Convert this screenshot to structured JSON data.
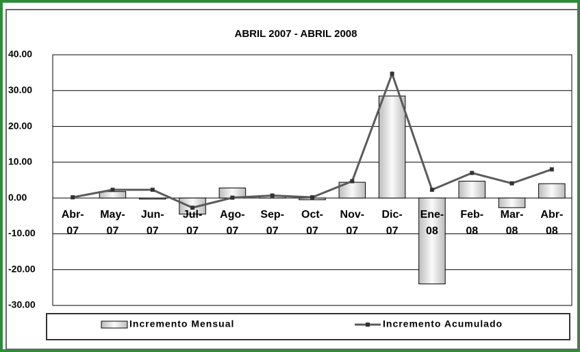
{
  "chart_data": {
    "type": "bar-line",
    "title": "ABRIL 2007 - ABRIL 2008",
    "categories": [
      "Abr-07",
      "May-07",
      "Jun-07",
      "Jul-07",
      "Ago-07",
      "Sep-07",
      "Oct-07",
      "Nov-07",
      "Dic-07",
      "Ene-08",
      "Feb-08",
      "Mar-08",
      "Abr-08"
    ],
    "series": [
      {
        "name": "Incremento Mensual",
        "type": "bar",
        "color": "#d9d9d9",
        "values": [
          0,
          1.8,
          -0.3,
          -4.5,
          2.8,
          0.5,
          -0.5,
          4.4,
          28.5,
          -24,
          4.7,
          -2.7,
          4.0
        ]
      },
      {
        "name": "Incremento Acumulado",
        "type": "line",
        "color": "#5a5a5a",
        "values": [
          0.2,
          2.3,
          2.3,
          -2.7,
          0.1,
          0.7,
          0.2,
          4.7,
          34.7,
          2.3,
          7.0,
          4.1,
          8.0
        ]
      }
    ],
    "ylim": [
      -30,
      40
    ],
    "yticks": [
      {
        "value": -30,
        "label": "-30.00"
      },
      {
        "value": -20,
        "label": "-20.00"
      },
      {
        "value": -10,
        "label": "-10.00"
      },
      {
        "value": 0,
        "label": "0.00"
      },
      {
        "value": 10,
        "label": "10.00"
      },
      {
        "value": 20,
        "label": "20.00"
      },
      {
        "value": 30,
        "label": "30.00"
      },
      {
        "value": 40,
        "label": "40.00"
      }
    ],
    "grid": true,
    "legend": "bottom"
  }
}
